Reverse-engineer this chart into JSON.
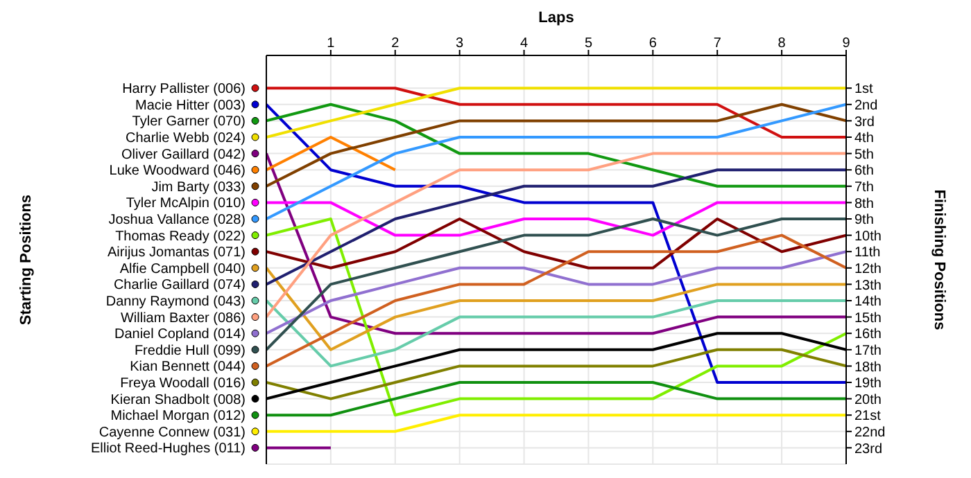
{
  "chart_data": {
    "type": "line",
    "xlabel": "Laps",
    "annotations": [
      "Starting Positions"
    ],
    "y2label": "Finishing Positions",
    "x": [
      0,
      1,
      2,
      3,
      4,
      5,
      6,
      7,
      8,
      9
    ],
    "xlim": [
      0,
      9
    ],
    "xticks": [
      1,
      2,
      3,
      4,
      5,
      6,
      7,
      8,
      9
    ],
    "y2lim": [
      24,
      -1
    ],
    "y2ticks": [
      {
        "value": 1,
        "label": "1st"
      },
      {
        "value": 2,
        "label": "2nd"
      },
      {
        "value": 3,
        "label": "3rd"
      },
      {
        "value": 4,
        "label": "4th"
      },
      {
        "value": 5,
        "label": "5th"
      },
      {
        "value": 6,
        "label": "6th"
      },
      {
        "value": 7,
        "label": "7th"
      },
      {
        "value": 8,
        "label": "8th"
      },
      {
        "value": 9,
        "label": "9th"
      },
      {
        "value": 10,
        "label": "10th"
      },
      {
        "value": 11,
        "label": "11th"
      },
      {
        "value": 12,
        "label": "12th"
      },
      {
        "value": 13,
        "label": "13th"
      },
      {
        "value": 14,
        "label": "14th"
      },
      {
        "value": 15,
        "label": "15th"
      },
      {
        "value": 16,
        "label": "16th"
      },
      {
        "value": 17,
        "label": "17th"
      },
      {
        "value": 18,
        "label": "18th"
      },
      {
        "value": 19,
        "label": "19th"
      },
      {
        "value": 20,
        "label": "20th"
      },
      {
        "value": 21,
        "label": "21st"
      },
      {
        "value": 22,
        "label": "22nd"
      },
      {
        "value": 23,
        "label": "23rd"
      }
    ],
    "grid": true,
    "marker": "none",
    "line_style": "solid",
    "legend": "left",
    "series": [
      {
        "name": "Harry Pallister (006)",
        "axis": "y2",
        "color": "#d01010",
        "values": [
          1,
          1,
          1,
          2,
          2,
          2,
          2,
          2,
          4,
          4
        ]
      },
      {
        "name": "Macie Hitter (003)",
        "axis": "y2",
        "color": "#0000d0",
        "values": [
          2,
          6,
          7,
          7,
          8,
          8,
          8,
          19,
          19,
          19
        ]
      },
      {
        "name": "Tyler Garner (070)",
        "axis": "y2",
        "color": "#119911",
        "values": [
          3,
          2,
          3,
          5,
          5,
          5,
          6,
          7,
          7,
          7
        ]
      },
      {
        "name": "Charlie Webb (024)",
        "axis": "y2",
        "color": "#f0e000",
        "values": [
          4,
          3,
          2,
          1,
          1,
          1,
          1,
          1,
          1,
          1
        ]
      },
      {
        "name": "Oliver Gaillard (042)",
        "axis": "y2",
        "color": "#800080",
        "values": [
          5,
          15,
          16,
          16,
          16,
          16,
          16,
          15,
          15,
          15
        ]
      },
      {
        "name": "Luke Woodward (046)",
        "axis": "y2",
        "color": "#ff8000",
        "values": [
          6,
          4,
          6,
          null,
          null,
          null,
          null,
          null,
          null,
          null
        ]
      },
      {
        "name": "Jim Barty (033)",
        "axis": "y2",
        "color": "#804000",
        "values": [
          7,
          5,
          4,
          3,
          3,
          3,
          3,
          3,
          2,
          3
        ]
      },
      {
        "name": "Tyler McAlpin (010)",
        "axis": "y2",
        "color": "#ff00ff",
        "values": [
          8,
          8,
          10,
          10,
          9,
          9,
          10,
          8,
          8,
          8
        ]
      },
      {
        "name": "Joshua Vallance (028)",
        "axis": "y2",
        "color": "#3399ff",
        "values": [
          9,
          7,
          5,
          4,
          4,
          4,
          4,
          4,
          3,
          2
        ]
      },
      {
        "name": "Thomas Ready (022)",
        "axis": "y2",
        "color": "#80ee00",
        "values": [
          10,
          9,
          21,
          20,
          20,
          20,
          20,
          18,
          18,
          16
        ]
      },
      {
        "name": "Airijus Jomantas (071)",
        "axis": "y2",
        "color": "#800000",
        "values": [
          11,
          12,
          11,
          9,
          11,
          12,
          12,
          9,
          11,
          10
        ]
      },
      {
        "name": "Alfie Campbell (040)",
        "axis": "y2",
        "color": "#e0a020",
        "values": [
          12,
          17,
          15,
          14,
          14,
          14,
          14,
          13,
          13,
          13
        ]
      },
      {
        "name": "Charlie Gaillard (074)",
        "axis": "y2",
        "color": "#202070",
        "values": [
          13,
          11,
          9,
          8,
          7,
          7,
          7,
          6,
          6,
          6
        ]
      },
      {
        "name": "Danny Raymond (043)",
        "axis": "y2",
        "color": "#66ccaa",
        "values": [
          14,
          18,
          17,
          15,
          15,
          15,
          15,
          14,
          14,
          14
        ]
      },
      {
        "name": "William Baxter (086)",
        "axis": "y2",
        "color": "#ffa080",
        "values": [
          15,
          10,
          8,
          6,
          6,
          6,
          5,
          5,
          5,
          5
        ]
      },
      {
        "name": "Daniel Copland (014)",
        "axis": "y2",
        "color": "#9070d0",
        "values": [
          16,
          14,
          13,
          12,
          12,
          13,
          13,
          12,
          12,
          11
        ]
      },
      {
        "name": "Freddie Hull (099)",
        "axis": "y2",
        "color": "#305050",
        "values": [
          17,
          13,
          12,
          11,
          10,
          10,
          9,
          10,
          9,
          9
        ]
      },
      {
        "name": "Kian Bennett (044)",
        "axis": "y2",
        "color": "#d06020",
        "values": [
          18,
          16,
          14,
          13,
          13,
          11,
          11,
          11,
          10,
          12
        ]
      },
      {
        "name": "Freya Woodall (016)",
        "axis": "y2",
        "color": "#808000",
        "values": [
          19,
          20,
          19,
          18,
          18,
          18,
          18,
          17,
          17,
          18
        ]
      },
      {
        "name": "Kieran Shadbolt (008)",
        "axis": "y2",
        "color": "#000000",
        "values": [
          20,
          19,
          18,
          17,
          17,
          17,
          17,
          16,
          16,
          17
        ]
      },
      {
        "name": "Michael Morgan (012)",
        "axis": "y2",
        "color": "#109010",
        "values": [
          21,
          21,
          20,
          19,
          19,
          19,
          19,
          20,
          20,
          20
        ]
      },
      {
        "name": "Cayenne Connew (031)",
        "axis": "y2",
        "color": "#ffee00",
        "values": [
          22,
          22,
          22,
          21,
          21,
          21,
          21,
          21,
          21,
          21
        ]
      },
      {
        "name": "Elliot Reed-Hughes (011)",
        "axis": "y2",
        "color": "#800080",
        "values": [
          23,
          23,
          null,
          null,
          null,
          null,
          null,
          null,
          null,
          null
        ]
      }
    ]
  }
}
